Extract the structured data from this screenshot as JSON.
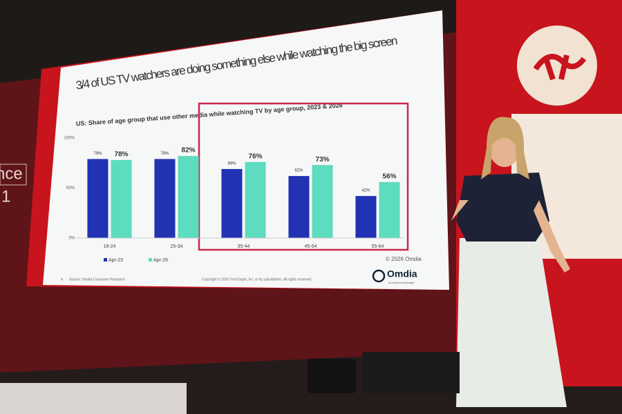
{
  "chart_data": {
    "type": "bar",
    "title": "3/4 of US TV watchers are doing something else while watching the big screen",
    "subtitle": "US: Share of age group that use other media while watching TV by age group, 2023 & 2026",
    "categories": [
      "18-24",
      "25-34",
      "35-44",
      "45-54",
      "55-64"
    ],
    "series": [
      {
        "name": "Apr-23",
        "color": "#2133b3",
        "values": [
          79,
          79,
          69,
          62,
          42
        ],
        "value_labels": [
          "79%",
          "79%",
          "69%",
          "62%",
          "42%"
        ]
      },
      {
        "name": "Apr-26",
        "color": "#5edcbf",
        "values": [
          78,
          82,
          76,
          73,
          56
        ],
        "value_labels": [
          "78%",
          "82%",
          "76%",
          "73%",
          "56%"
        ]
      }
    ],
    "ylim": [
      0,
      100
    ],
    "yticks": [
      {
        "value": 0,
        "label": "0%"
      },
      {
        "value": 50,
        "label": "50%"
      },
      {
        "value": 100,
        "label": "100%"
      }
    ],
    "grid": false
  },
  "slide": {
    "source": "Source: Omdia Consumer Research",
    "page": "4",
    "copyright": "Copyright © 2026 TechTarget, Inc. or its subsidiaries. All rights reserved.",
    "credit": "© 2026 Omdia",
    "logo": "Omdia",
    "logo_tagline": "by informa techtarget"
  },
  "venue": {
    "wall_text": [
      "nce",
      "1"
    ]
  }
}
